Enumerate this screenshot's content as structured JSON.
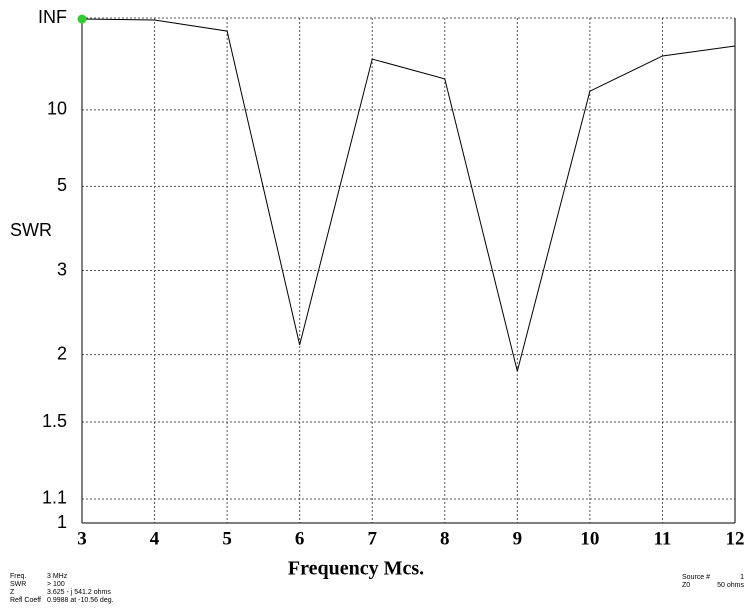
{
  "chart_data": {
    "type": "line",
    "y_label": "SWR",
    "x_label": "Frequency Mcs.",
    "x": [
      3,
      4,
      5,
      6,
      7,
      8,
      9,
      10,
      11,
      12
    ],
    "series": [
      {
        "color": "#000000",
        "values": [
          1000,
          499,
          76,
          2.09,
          23.6,
          15.6,
          1.86,
          12.8,
          25.6,
          35
        ]
      }
    ],
    "marker_color": "#33cc33",
    "xlim": [
      3,
      12
    ],
    "xticks": [
      3,
      4,
      5,
      6,
      7,
      8,
      9,
      10,
      11,
      12
    ],
    "ylim": [
      1,
      1e+308
    ],
    "yscale": "reflection",
    "yticks": [
      1,
      1.1,
      1.5,
      2,
      3,
      5,
      10,
      {
        "value": 1e+308,
        "label": "INF"
      }
    ],
    "grid": true
  },
  "info_left": [
    [
      "Freq.",
      "3 MHz"
    ],
    [
      "SWR",
      "> 100"
    ],
    [
      "Z",
      "3.625 - j 541.2 ohms"
    ],
    [
      "Refl Coeff",
      "0.9988 at -10.56 deg."
    ]
  ],
  "info_right": [
    [
      "Source #",
      "1"
    ],
    [
      "Z0",
      "50 ohms"
    ]
  ]
}
